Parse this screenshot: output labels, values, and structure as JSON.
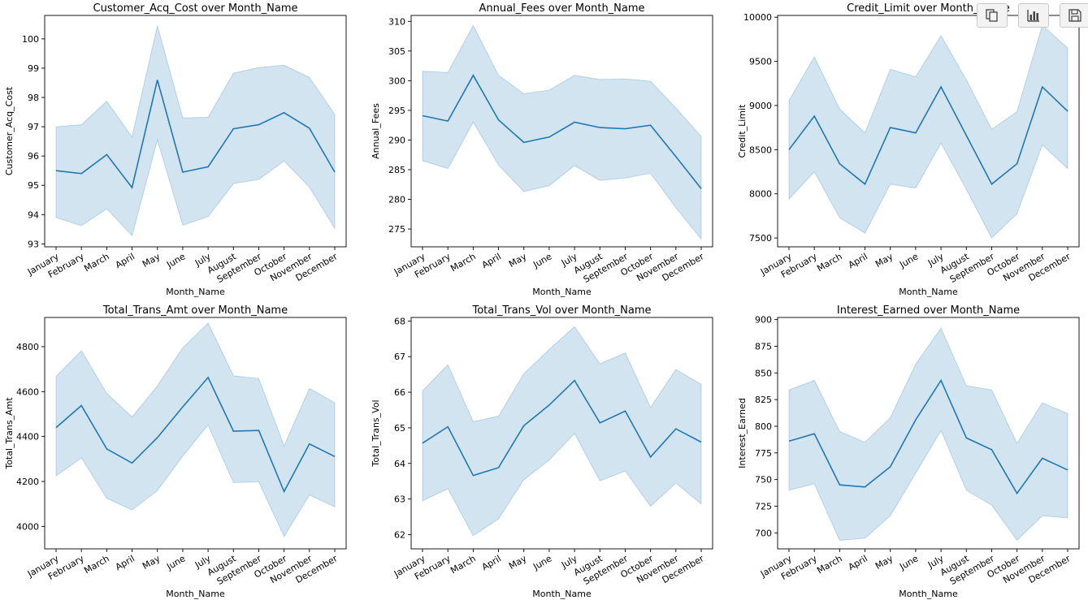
{
  "months": [
    "January",
    "February",
    "March",
    "April",
    "May",
    "June",
    "July",
    "August",
    "September",
    "October",
    "November",
    "December"
  ],
  "colors": {
    "line": "#1f77b4",
    "band": "#1f77b4",
    "axis": "#000000"
  },
  "toolbar": [
    {
      "name": "copy-button",
      "icon": "copy-icon"
    },
    {
      "name": "chart-button",
      "icon": "bar-chart-icon"
    },
    {
      "name": "save-button",
      "icon": "save-icon"
    }
  ],
  "chart_data": [
    {
      "type": "line",
      "title": "Customer_Acq_Cost over Month_Name",
      "xlabel": "Month_Name",
      "ylabel": "Customer_Acq_Cost",
      "ylim": [
        92.9,
        100.8
      ],
      "yticks": [
        93,
        94,
        95,
        96,
        97,
        98,
        99,
        100
      ],
      "values": [
        95.5,
        95.4,
        96.05,
        94.92,
        98.6,
        95.45,
        95.63,
        96.93,
        97.07,
        97.48,
        96.95,
        95.45
      ],
      "ci_lower": [
        93.9,
        93.62,
        94.2,
        93.28,
        96.55,
        93.64,
        93.93,
        95.06,
        95.2,
        95.83,
        94.94,
        93.53
      ],
      "ci_upper": [
        97.0,
        97.07,
        97.87,
        96.65,
        100.45,
        97.3,
        97.32,
        98.83,
        99.02,
        99.1,
        98.68,
        97.42
      ]
    },
    {
      "type": "line",
      "title": "Annual_Fees over Month_Name",
      "xlabel": "Month_Name",
      "ylabel": "Annual_Fees",
      "ylim": [
        272,
        311
      ],
      "yticks": [
        275,
        280,
        285,
        290,
        295,
        300,
        305,
        310
      ],
      "values": [
        294.1,
        293.2,
        300.9,
        293.4,
        289.6,
        290.5,
        293.0,
        292.1,
        291.9,
        292.5,
        287.2,
        281.8
      ],
      "ci_lower": [
        286.5,
        285.2,
        293.0,
        285.8,
        281.3,
        282.3,
        285.7,
        283.2,
        283.6,
        284.4,
        278.6,
        273.3
      ],
      "ci_upper": [
        301.6,
        301.4,
        309.3,
        300.9,
        297.8,
        298.4,
        300.9,
        300.2,
        300.3,
        299.9,
        295.4,
        290.6
      ]
    },
    {
      "type": "line",
      "title": "Credit_Limit over Month_Name",
      "xlabel": "Month_Name",
      "ylabel": "Credit_Limit",
      "ylim": [
        7400,
        10020
      ],
      "yticks": [
        7500,
        8000,
        8500,
        9000,
        9500,
        10000
      ],
      "values": [
        8500,
        8880,
        8340,
        8110,
        8750,
        8690,
        9210,
        8660,
        8110,
        8340,
        9210,
        8935
      ],
      "ci_lower": [
        7940,
        8250,
        7730,
        7555,
        8110,
        8065,
        8575,
        8050,
        7500,
        7775,
        8555,
        8285
      ],
      "ci_upper": [
        9055,
        9550,
        8960,
        8690,
        9410,
        9325,
        9790,
        9290,
        8730,
        8930,
        9910,
        9650
      ]
    },
    {
      "type": "line",
      "title": "Total_Trans_Amt over Month_Name",
      "xlabel": "Month_Name",
      "ylabel": "Total_Trans_Amt",
      "ylim": [
        3900,
        4930
      ],
      "yticks": [
        4000,
        4200,
        4400,
        4600,
        4800
      ],
      "values": [
        4440,
        4538,
        4345,
        4282,
        4395,
        4532,
        4663,
        4424,
        4427,
        4155,
        4367,
        4311
      ],
      "ci_lower": [
        4225,
        4305,
        4125,
        4073,
        4160,
        4313,
        4452,
        4195,
        4198,
        3955,
        4140,
        4087
      ],
      "ci_upper": [
        4668,
        4782,
        4592,
        4487,
        4625,
        4795,
        4905,
        4670,
        4658,
        4358,
        4614,
        4550
      ]
    },
    {
      "type": "line",
      "title": "Total_Trans_Vol over Month_Name",
      "xlabel": "Month_Name",
      "ylabel": "Total_Trans_Vol",
      "ylim": [
        61.6,
        68.1
      ],
      "yticks": [
        62,
        63,
        64,
        65,
        66,
        67,
        68
      ],
      "values": [
        64.57,
        65.03,
        63.66,
        63.88,
        65.06,
        65.64,
        66.33,
        65.14,
        65.47,
        64.18,
        64.97,
        64.6
      ],
      "ci_lower": [
        62.95,
        63.29,
        61.97,
        62.44,
        63.54,
        64.09,
        64.84,
        63.51,
        63.79,
        62.79,
        63.45,
        62.86
      ],
      "ci_upper": [
        66.04,
        66.77,
        65.17,
        65.33,
        66.52,
        67.2,
        67.84,
        66.8,
        67.1,
        65.57,
        66.64,
        66.22
      ]
    },
    {
      "type": "line",
      "title": "Interest_Earned over Month_Name",
      "xlabel": "Month_Name",
      "ylabel": "Interest_Earned",
      "ylim": [
        685,
        902
      ],
      "yticks": [
        700,
        725,
        750,
        775,
        800,
        825,
        850,
        875,
        900
      ],
      "values": [
        786,
        793,
        745,
        743,
        762,
        806,
        843,
        789,
        778,
        737,
        770,
        759
      ],
      "ci_lower": [
        740,
        746,
        693,
        695,
        716,
        756,
        796,
        740,
        726,
        693,
        716,
        714
      ],
      "ci_upper": [
        834,
        843,
        795,
        785,
        808,
        858,
        892,
        838,
        834,
        784,
        822,
        812
      ]
    }
  ]
}
